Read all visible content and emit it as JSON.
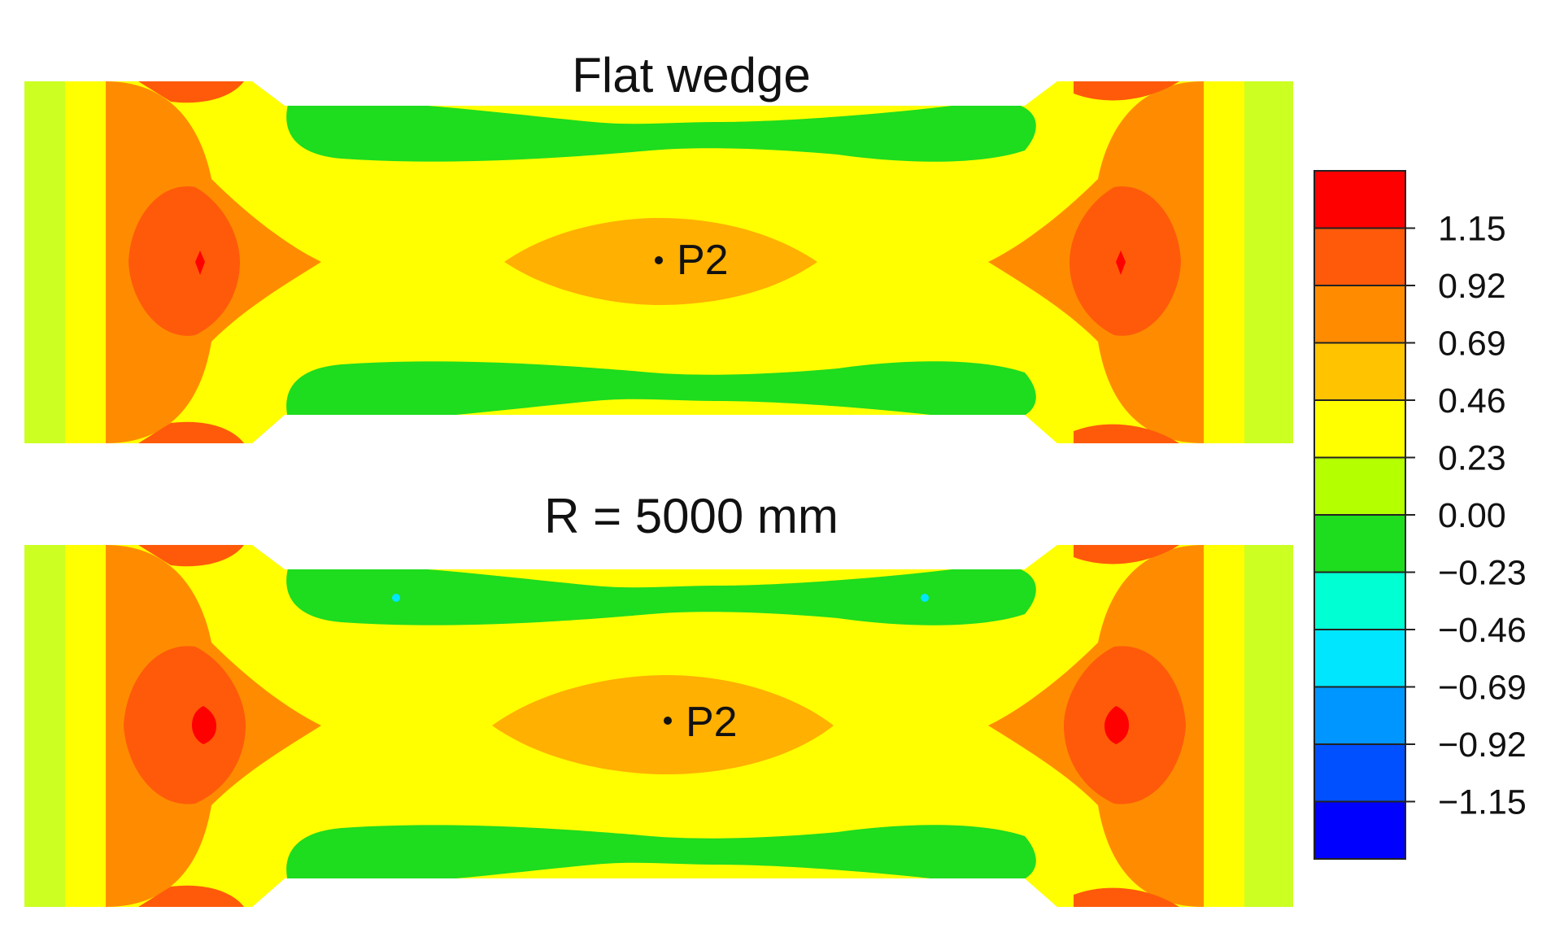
{
  "panels": [
    {
      "title": "Flat wedge",
      "point_label": "P2"
    },
    {
      "title": "R = 5000 mm",
      "point_label": "P2"
    }
  ],
  "legend": {
    "labels": [
      "1.15",
      "0.92",
      "0.69",
      "0.46",
      "0.23",
      "0.00",
      "−0.23",
      "−0.46",
      "−0.69",
      "−0.92",
      "−1.15"
    ],
    "colors": [
      "#ff0000",
      "#ff5a0a",
      "#ff8c00",
      "#ffc300",
      "#ffff00",
      "#b4ff00",
      "#1edc1e",
      "#00ffd2",
      "#00e6ff",
      "#0096ff",
      "#0050ff",
      "#0000ff"
    ]
  },
  "contour_colors": {
    "red": "#ff0000",
    "dark_orange": "#ff5a0a",
    "orange": "#ff8c00",
    "light_orange": "#ffb000",
    "yellow": "#ffff00",
    "yellow_green": "#ccff22",
    "green": "#1edc1e",
    "cyan": "#00e6ff"
  }
}
